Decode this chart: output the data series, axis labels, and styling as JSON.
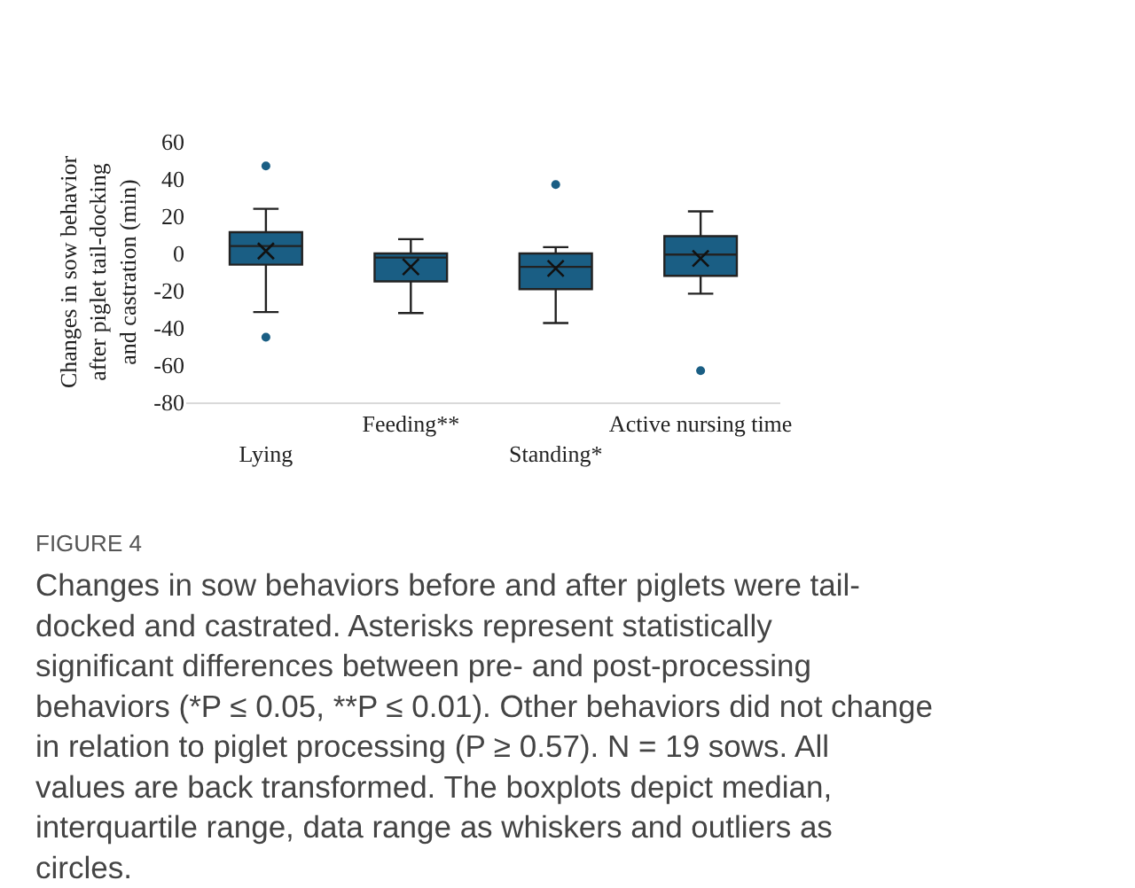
{
  "chart_data": {
    "type": "box",
    "ylabel": "Changes in sow behavior after piglet tail-docking and castration (min)",
    "categories": [
      "Lying",
      "Feeding**",
      "Standing*",
      "Active nursing time"
    ],
    "color": "#1a5e84",
    "boxes": [
      {
        "low": -31.5,
        "q1": -6,
        "median": 4,
        "q3": 11.4,
        "high": 24,
        "mean": 1.3,
        "outliers": [
          47,
          -45
        ]
      },
      {
        "low": -32,
        "q1": -15,
        "median": -2.2,
        "q3": 0,
        "high": 7.7,
        "mean": -7.2
      },
      {
        "low": -37.4,
        "q1": -19.2,
        "median": -7.2,
        "q3": 0,
        "high": 3.4,
        "mean": -8,
        "outliers": [
          37
        ]
      },
      {
        "low": -21.6,
        "q1": -12,
        "median": -0.6,
        "q3": 9.3,
        "high": 22.6,
        "mean": -2.7,
        "outliers": [
          -63
        ]
      }
    ],
    "ylim": [
      -80,
      60
    ],
    "yticks": [
      -80,
      -60,
      -40,
      -20,
      0,
      20,
      40,
      60
    ],
    "annotations": [
      "FIGURE 4",
      "Changes in sow behaviors before and after piglets were tail-docked and castrated. Asterisks represent statistically significant differences between pre- and post-processing behaviors (*P ≤ 0.05, **P ≤ 0.01). Other behaviors did not change in relation to piglet processing (P ≥ 0.57). N = 19 sows. All values are back transformed. The boxplots depict median, interquartile range, data range as whiskers and outliers as circles."
    ]
  }
}
